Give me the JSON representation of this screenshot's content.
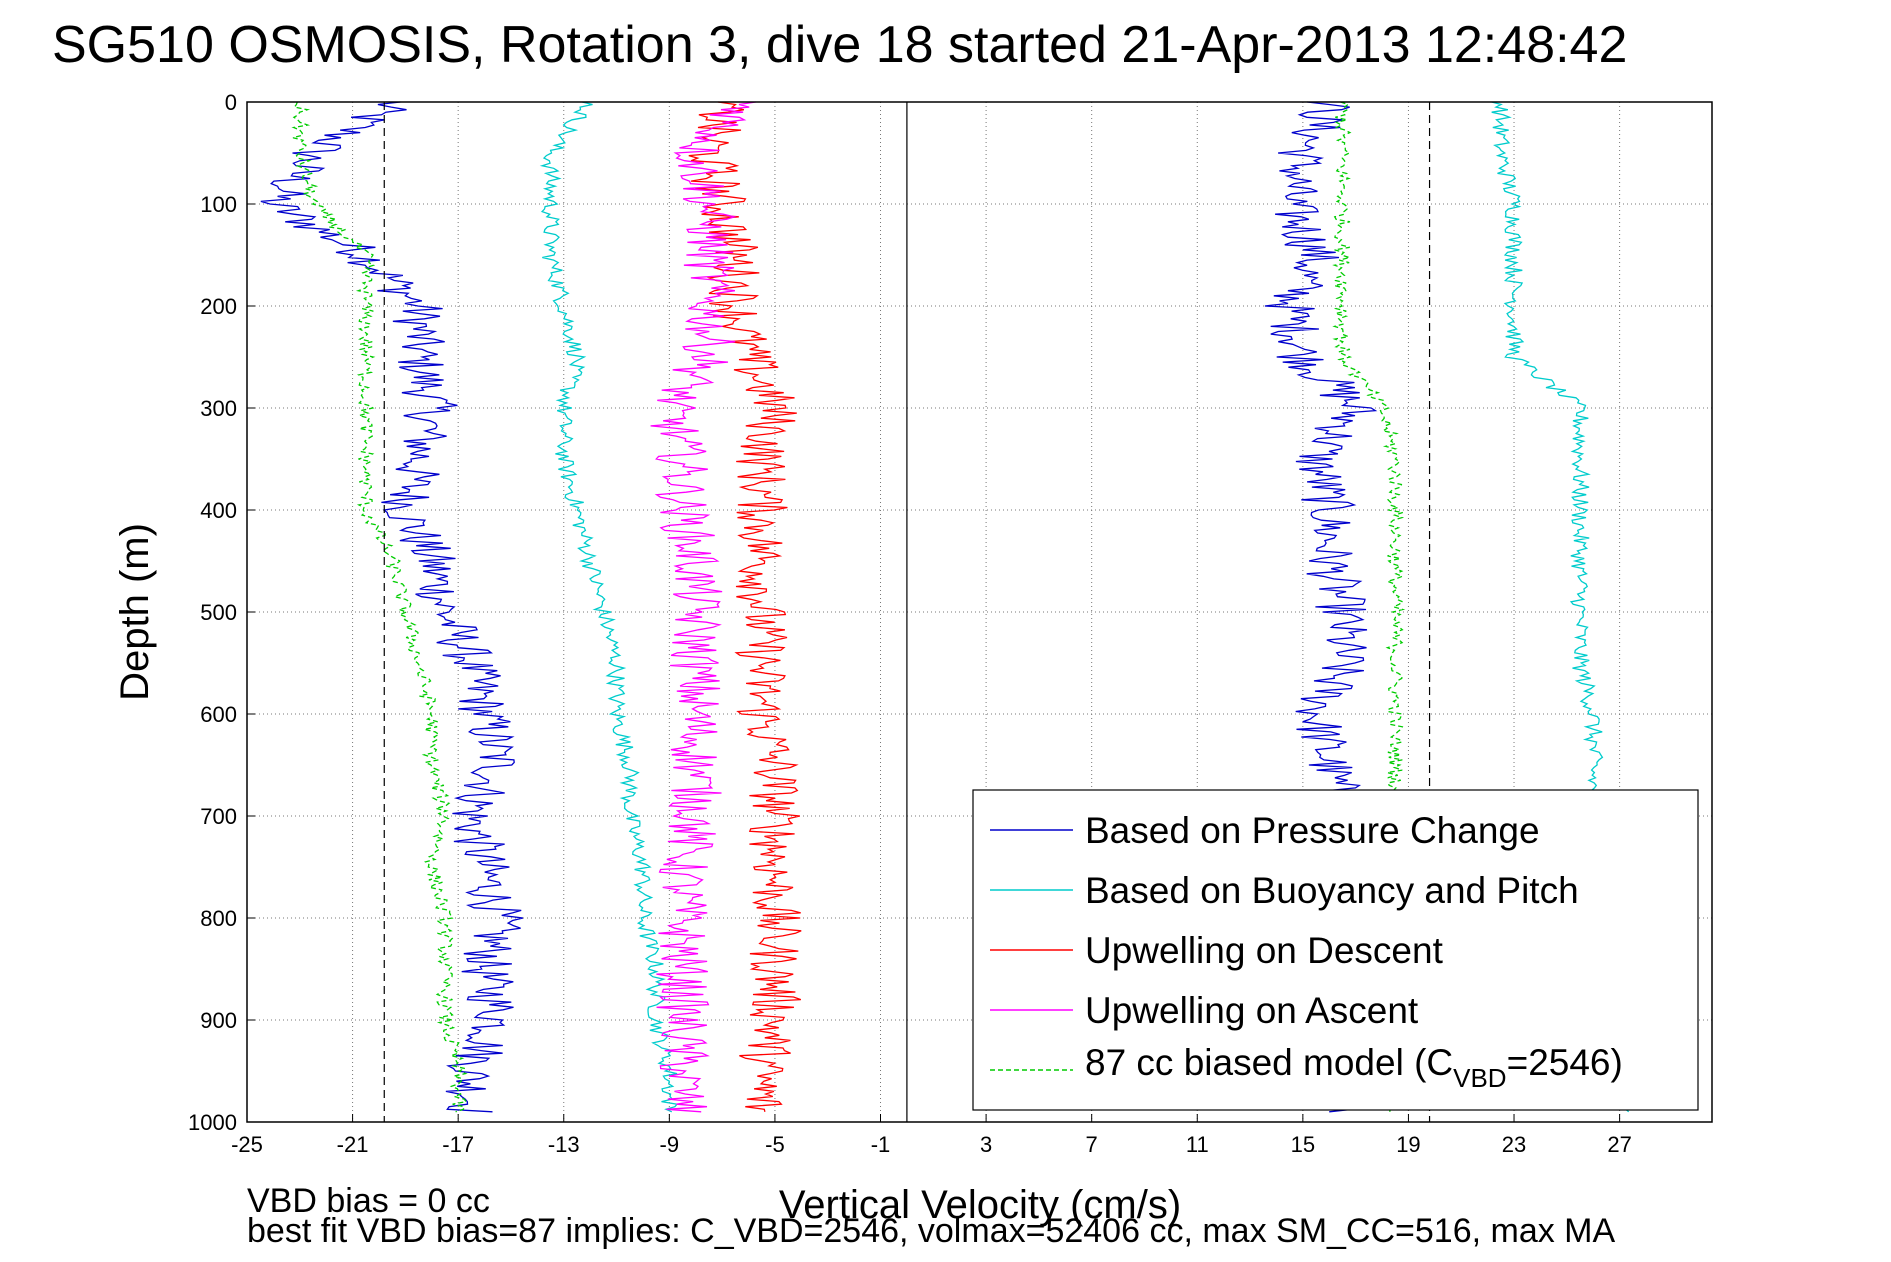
{
  "chart_data": {
    "type": "line",
    "title": "SG510 OSMOSIS, Rotation 3, dive 18 started 21-Apr-2013 12:48:42",
    "xlabel": "Vertical Velocity (cm/s)",
    "ylabel": "Depth (m)",
    "xlim": [
      -25,
      30.5
    ],
    "ylim": [
      0,
      1000
    ],
    "y_reversed": true,
    "grid": true,
    "x_ticks": [
      "-25",
      "-21",
      "-17",
      "-13",
      "-9",
      "-5",
      "-1",
      "3",
      "7",
      "11",
      "15",
      "19",
      "23",
      "27"
    ],
    "y_ticks": [
      "0",
      "100",
      "200",
      "300",
      "400",
      "500",
      "600",
      "700",
      "800",
      "900",
      "1000"
    ],
    "legend_position": "bottom-right",
    "vbd_reference_lines": [
      -19.8,
      19.8
    ],
    "depth_points": [
      0,
      50,
      100,
      150,
      200,
      250,
      300,
      350,
      400,
      450,
      500,
      550,
      600,
      650,
      700,
      750,
      800,
      850,
      900,
      950,
      990
    ],
    "series": [
      {
        "name": "Based on Pressure Change",
        "color": "#0000cc",
        "style": "solid",
        "descent_values": [
          -19.5,
          -22.5,
          -24,
          -20.5,
          -18.5,
          -18.5,
          -18,
          -18.5,
          -19,
          -18,
          -17.5,
          -16.5,
          -16,
          -15.5,
          -16.5,
          -16,
          -15.5,
          -16,
          -15.5,
          -16.5,
          -16.5
        ],
        "ascent_values": [
          16,
          15,
          14.5,
          15.5,
          14.5,
          15,
          17,
          15.5,
          16,
          16,
          16.5,
          16.5,
          15.5,
          16,
          16.5,
          16.5,
          16,
          16.5,
          16.5,
          16.5,
          16.5
        ]
      },
      {
        "name": "Based on Buoyancy and Pitch",
        "color": "#00cccc",
        "style": "solid",
        "descent_values": [
          -12,
          -13.5,
          -13.5,
          -13.5,
          -13,
          -12.5,
          -13,
          -13,
          -12.5,
          -12,
          -11.5,
          -11,
          -11,
          -10.5,
          -10.5,
          -10,
          -10,
          -9.5,
          -9.5,
          -9,
          -9
        ],
        "ascent_values": [
          22.5,
          22.5,
          23,
          23,
          23,
          23,
          25.5,
          25.5,
          25.5,
          25.5,
          25.5,
          25.5,
          26,
          26,
          26,
          26.5,
          26.5,
          26.5,
          26.5,
          27,
          27
        ]
      },
      {
        "name": "Upwelling on Descent",
        "color": "#ff0000",
        "style": "solid",
        "values": [
          -7,
          -7.5,
          -7,
          -6.5,
          -6.5,
          -6,
          -5,
          -5.5,
          -5.5,
          -5.5,
          -5.5,
          -5.5,
          -5.5,
          -5,
          -5,
          -5,
          -5,
          -5,
          -5,
          -5.5,
          -5.5
        ]
      },
      {
        "name": "Upwelling on Ascent",
        "color": "#ff00ff",
        "style": "solid",
        "values": [
          -6,
          -8,
          -7.5,
          -7.5,
          -7.5,
          -7.5,
          -9,
          -8.5,
          -8.5,
          -8,
          -8,
          -8,
          -8,
          -8,
          -8,
          -8.5,
          -8.5,
          -8.5,
          -8.5,
          -8.5,
          -8.5
        ]
      },
      {
        "name": "87 cc biased model (C_VBD=2546)",
        "color": "#00cc00",
        "style": "dashed",
        "descent_values": [
          -23,
          -23,
          -22.5,
          -20.5,
          -20.5,
          -20.5,
          -20.5,
          -20.5,
          -20.5,
          -19.5,
          -19,
          -18.5,
          -18,
          -18,
          -17.5,
          -18,
          -17.5,
          -17.5,
          -17.5,
          -17,
          -17
        ],
        "ascent_values": [
          16.5,
          16.5,
          16.5,
          16.5,
          16.5,
          16.5,
          18,
          18.5,
          18.5,
          18.5,
          18.5,
          18.5,
          18.5,
          18.5,
          18.5,
          18.5,
          18.5,
          18.5,
          18.5,
          18.5,
          18.5
        ]
      }
    ]
  },
  "legend": {
    "items": [
      {
        "text": "Based on Pressure Change",
        "color": "#0000cc",
        "dash": false
      },
      {
        "text": "Based on Buoyancy and Pitch",
        "color": "#00cccc",
        "dash": false
      },
      {
        "text": "Upwelling on Descent",
        "color": "#ff0000",
        "dash": false
      },
      {
        "text": "Upwelling on Ascent",
        "color": "#ff00ff",
        "dash": false
      }
    ],
    "model_prefix": "87 cc biased model (C",
    "model_sub": "VBD",
    "model_suffix": "=2546)",
    "model_color": "#00cc00"
  },
  "footer": {
    "line1": "VBD bias = 0 cc",
    "line2": "best fit VBD bias=87 implies: C_VBD=2546, volmax=52406 cc, max SM_CC=516, max MA"
  }
}
